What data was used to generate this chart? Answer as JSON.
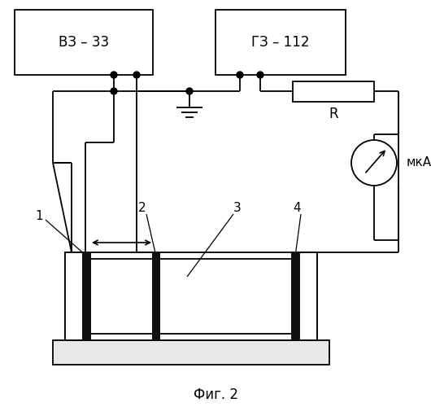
{
  "title": "Фиг. 2",
  "label_vz": "ВЗ – 33",
  "label_gz": "ГЗ – 112",
  "label_r": "R",
  "label_mka": "мкА",
  "labels_numbered": [
    "1",
    "2",
    "3",
    "4"
  ],
  "bg_color": "#ffffff",
  "line_color": "#000000",
  "electrode_color": "#111111",
  "base_color": "#e8e8e8",
  "liquid_color": "#cccccc"
}
